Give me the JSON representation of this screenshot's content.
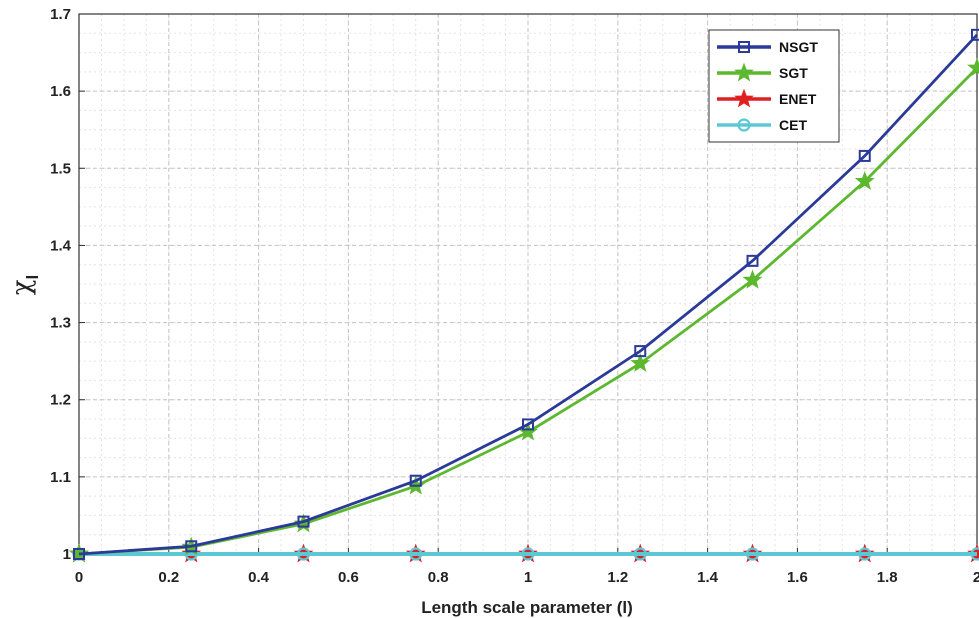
{
  "chart_data": {
    "type": "line",
    "title": "",
    "xlabel": "Length scale parameter (l)",
    "ylabel_symbol": "χ",
    "ylabel_subscript": "l",
    "xlim": [
      0,
      2
    ],
    "ylim": [
      1,
      1.7
    ],
    "xticks": [
      0,
      0.2,
      0.4,
      0.6,
      0.8,
      1,
      1.2,
      1.4,
      1.6,
      1.8,
      2
    ],
    "xtick_labels": [
      "0",
      "0.2",
      "0.4",
      "0.6",
      "0.8",
      "1",
      "1.2",
      "1.4",
      "1.6",
      "1.8",
      "2"
    ],
    "yticks": [
      1,
      1.1,
      1.2,
      1.3,
      1.4,
      1.5,
      1.6,
      1.7
    ],
    "ytick_labels": [
      "1",
      "1.1",
      "1.2",
      "1.3",
      "1.4",
      "1.5",
      "1.6",
      "1.7"
    ],
    "grid": true,
    "minor_grid": true,
    "legend_position": "top-right",
    "x": [
      0,
      0.25,
      0.5,
      0.75,
      1,
      1.25,
      1.5,
      1.75,
      2
    ],
    "series": [
      {
        "name": "NSGT",
        "color": "#2b3a98",
        "marker": "square",
        "values": [
          1.0,
          1.01,
          1.042,
          1.095,
          1.168,
          1.263,
          1.38,
          1.516,
          1.673
        ]
      },
      {
        "name": "SGT",
        "color": "#5cb82e",
        "marker": "star",
        "values": [
          1.0,
          1.009,
          1.039,
          1.088,
          1.158,
          1.247,
          1.355,
          1.483,
          1.63
        ]
      },
      {
        "name": "ENET",
        "color": "#e02020",
        "marker": "star",
        "values": [
          1,
          1,
          1,
          1,
          1,
          1,
          1,
          1,
          1
        ]
      },
      {
        "name": "CET",
        "color": "#5bc8d6",
        "marker": "circle",
        "values": [
          1,
          1,
          1,
          1,
          1,
          1,
          1,
          1,
          1
        ]
      }
    ]
  }
}
